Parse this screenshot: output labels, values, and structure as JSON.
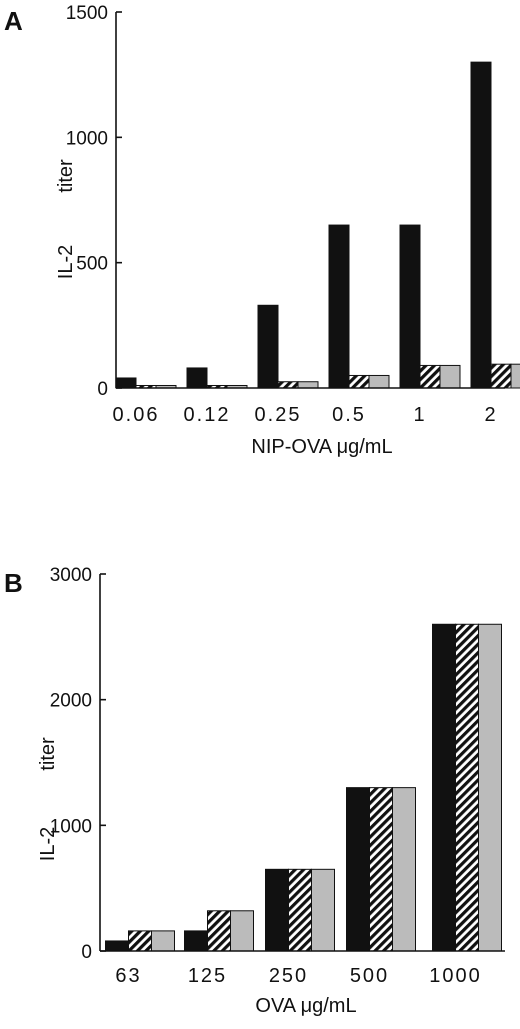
{
  "chart_data": [
    {
      "panel": "A",
      "type": "bar",
      "categories": [
        "0.06",
        "0.12",
        "0.25",
        "0.5",
        "1",
        "2"
      ],
      "series": [
        {
          "fill": "#111111",
          "pattern": "solid",
          "values": [
            40,
            80,
            330,
            650,
            650,
            1300
          ]
        },
        {
          "fill": "#111111",
          "pattern": "hatched",
          "values": [
            10,
            10,
            25,
            50,
            90,
            95
          ]
        },
        {
          "fill": "#bbbbbb",
          "pattern": "gray",
          "values": [
            10,
            10,
            25,
            50,
            90,
            95
          ]
        }
      ],
      "ylabel_left": "IL-2",
      "ylabel_right": "titer",
      "xlabel": "NIP-OVA μg/mL",
      "yticks": [
        "0",
        "500",
        "1000",
        "1500"
      ],
      "ylim": [
        0,
        1500
      ],
      "grid": false,
      "legend": "none"
    },
    {
      "panel": "B",
      "type": "bar",
      "categories": [
        "63",
        "125",
        "250",
        "500",
        "1000"
      ],
      "series": [
        {
          "fill": "#111111",
          "pattern": "solid",
          "values": [
            80,
            160,
            650,
            1300,
            2600
          ]
        },
        {
          "fill": "#111111",
          "pattern": "hatched",
          "values": [
            160,
            320,
            650,
            1300,
            2600
          ]
        },
        {
          "fill": "#bbbbbb",
          "pattern": "gray",
          "values": [
            160,
            320,
            650,
            1300,
            2600
          ]
        }
      ],
      "ylabel_left": "IL-2",
      "ylabel_right": "titer",
      "xlabel": "OVA μg/mL",
      "yticks": [
        "0",
        "1000",
        "2000",
        "3000"
      ],
      "ylim": [
        0,
        3000
      ],
      "grid": false,
      "legend": "none"
    }
  ]
}
